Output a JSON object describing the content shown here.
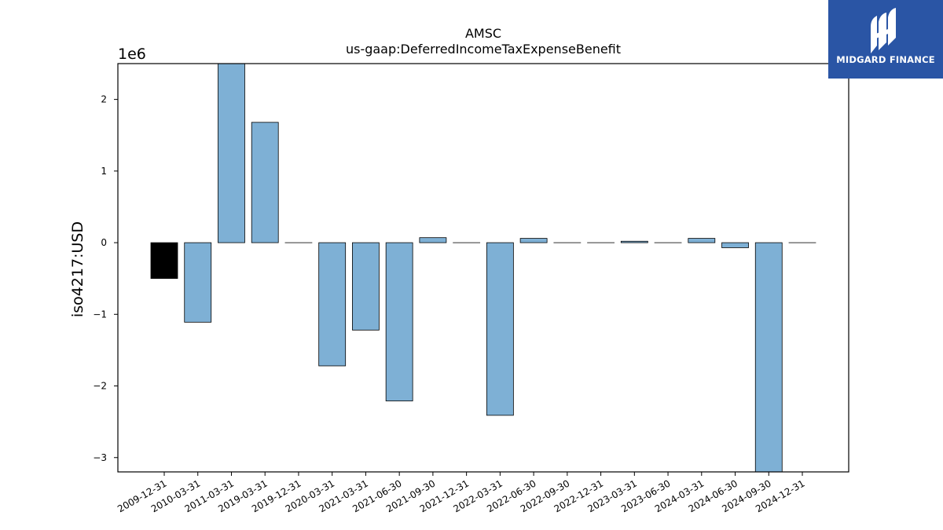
{
  "watermark": {
    "text": "MIDGARD FINANCE",
    "icon": "midgard-logo-icon",
    "color": "#2a55a5"
  },
  "chart_data": {
    "type": "bar",
    "title": "AMSC",
    "subtitle": "us-gaap:DeferredIncomeTaxExpenseBenefit",
    "xlabel": "",
    "ylabel": "iso4217:USD",
    "y_scale_label": "1e6",
    "ylim": [
      -3.2,
      2.5
    ],
    "y_ticks": [
      {
        "value": -3,
        "label": "−3"
      },
      {
        "value": -2,
        "label": "−2"
      },
      {
        "value": -1,
        "label": "−1"
      },
      {
        "value": 0,
        "label": "0"
      },
      {
        "value": 1,
        "label": "1"
      },
      {
        "value": 2,
        "label": "2"
      }
    ],
    "grid": false,
    "legend": "none",
    "categories": [
      "2009-12-31",
      "2010-03-31",
      "2011-03-31",
      "2019-03-31",
      "2019-12-31",
      "2020-03-31",
      "2021-03-31",
      "2021-06-30",
      "2021-09-30",
      "2021-12-31",
      "2022-03-31",
      "2022-06-30",
      "2022-09-30",
      "2022-12-31",
      "2023-03-31",
      "2023-06-30",
      "2024-03-31",
      "2024-06-30",
      "2024-09-30",
      "2024-12-31"
    ],
    "values": [
      -0.5,
      -1.11,
      2.5,
      1.68,
      0,
      -1.72,
      -1.22,
      -2.21,
      0.07,
      0,
      -2.41,
      0.06,
      0,
      0,
      0.02,
      0,
      0.06,
      -0.07,
      -3.2,
      0
    ],
    "bar_colors": [
      "#000000",
      "#7eb0d5",
      "#7eb0d5",
      "#7eb0d5",
      "#7eb0d5",
      "#7eb0d5",
      "#7eb0d5",
      "#7eb0d5",
      "#7eb0d5",
      "#7eb0d5",
      "#7eb0d5",
      "#7eb0d5",
      "#7eb0d5",
      "#7eb0d5",
      "#7eb0d5",
      "#7eb0d5",
      "#7eb0d5",
      "#7eb0d5",
      "#7eb0d5",
      "#7eb0d5"
    ],
    "edge_color": "#000000"
  }
}
